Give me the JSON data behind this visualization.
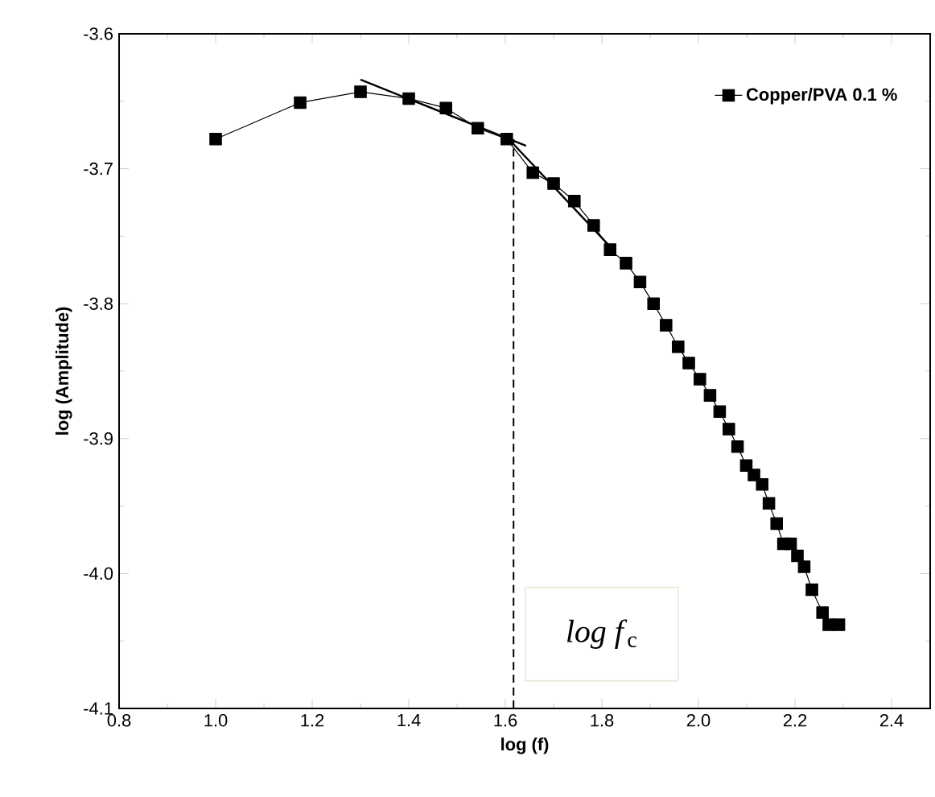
{
  "chart_data": {
    "type": "line",
    "xlabel": "log (f)",
    "ylabel": "log (Amplitude)",
    "xlim": [
      0.8,
      2.48
    ],
    "ylim": [
      -4.1,
      -3.6
    ],
    "xticks": [
      {
        "value": 0.8,
        "label": "0.8"
      },
      {
        "value": 1.0,
        "label": "1.0"
      },
      {
        "value": 1.2,
        "label": "1.2"
      },
      {
        "value": 1.4,
        "label": "1.4"
      },
      {
        "value": 1.6,
        "label": "1.6"
      },
      {
        "value": 1.8,
        "label": "1.8"
      },
      {
        "value": 2.0,
        "label": "2.0"
      },
      {
        "value": 2.2,
        "label": "2.2"
      },
      {
        "value": 2.4,
        "label": "2.4"
      }
    ],
    "yticks": [
      {
        "value": -4.1,
        "label": "-4.1"
      },
      {
        "value": -4.0,
        "label": "-4.0"
      },
      {
        "value": -3.9,
        "label": "-3.9"
      },
      {
        "value": -3.8,
        "label": "-3.8"
      },
      {
        "value": -3.7,
        "label": "-3.7"
      },
      {
        "value": -3.6,
        "label": "-3.6"
      }
    ],
    "legend": "top right",
    "grid": false,
    "series": [
      {
        "name": "Copper/PVA 0.1 %",
        "color": "#000000",
        "marker": "square",
        "line_style": "solid",
        "x": [
          1.0,
          1.175,
          1.3,
          1.4,
          1.477,
          1.543,
          1.603,
          1.657,
          1.7,
          1.743,
          1.783,
          1.817,
          1.85,
          1.879,
          1.907,
          1.933,
          1.958,
          1.98,
          2.003,
          2.024,
          2.044,
          2.063,
          2.081,
          2.099,
          2.115,
          2.132,
          2.146,
          2.162,
          2.176,
          2.191,
          2.205,
          2.219,
          2.235,
          2.257,
          2.27,
          2.291
        ],
        "values": [
          -3.678,
          -3.651,
          -3.643,
          -3.648,
          -3.655,
          -3.67,
          -3.678,
          -3.703,
          -3.711,
          -3.724,
          -3.742,
          -3.76,
          -3.77,
          -3.784,
          -3.8,
          -3.816,
          -3.832,
          -3.844,
          -3.856,
          -3.868,
          -3.88,
          -3.893,
          -3.906,
          -3.92,
          -3.927,
          -3.934,
          -3.948,
          -3.963,
          -3.978,
          -3.978,
          -3.987,
          -3.995,
          -4.012,
          -4.029,
          -4.038,
          -4.038
        ]
      },
      {
        "type": "line",
        "color": "#000000",
        "marker": "none",
        "line_style": "solid",
        "x": [
          1.3,
          1.643
        ],
        "values": [
          -3.634,
          -3.683
        ]
      },
      {
        "type": "line",
        "color": "#000000",
        "marker": "none",
        "line_style": "solid",
        "x": [
          1.607,
          1.823
        ],
        "values": [
          -3.678,
          -3.76
        ]
      },
      {
        "type": "line",
        "color": "#000000",
        "marker": "none",
        "line_style": "dashed",
        "x": [
          1.617,
          1.617
        ],
        "values": [
          -4.1,
          -3.678
        ]
      }
    ],
    "annotations": [
      "*log f*$_{c}$"
    ]
  }
}
